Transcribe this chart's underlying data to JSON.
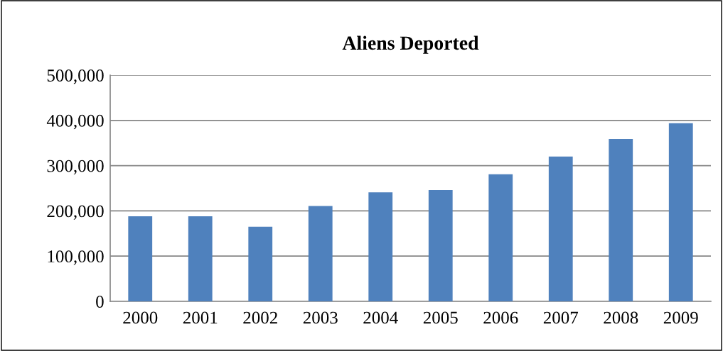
{
  "chart_data": {
    "type": "bar",
    "title": "Aliens Deported",
    "categories": [
      "2000",
      "2001",
      "2002",
      "2003",
      "2004",
      "2005",
      "2006",
      "2007",
      "2008",
      "2009"
    ],
    "values": [
      188000,
      188000,
      165000,
      211000,
      241000,
      246000,
      281000,
      320000,
      359000,
      394000
    ],
    "color": "#4f81bd",
    "ylim": [
      0,
      500000
    ],
    "yticks": [
      {
        "value": 0,
        "label": "0"
      },
      {
        "value": 100000,
        "label": "100,000"
      },
      {
        "value": 200000,
        "label": "200,000"
      },
      {
        "value": 300000,
        "label": "300,000"
      },
      {
        "value": 400000,
        "label": "400,000"
      },
      {
        "value": 500000,
        "label": "500,000"
      }
    ],
    "grid": "y"
  }
}
